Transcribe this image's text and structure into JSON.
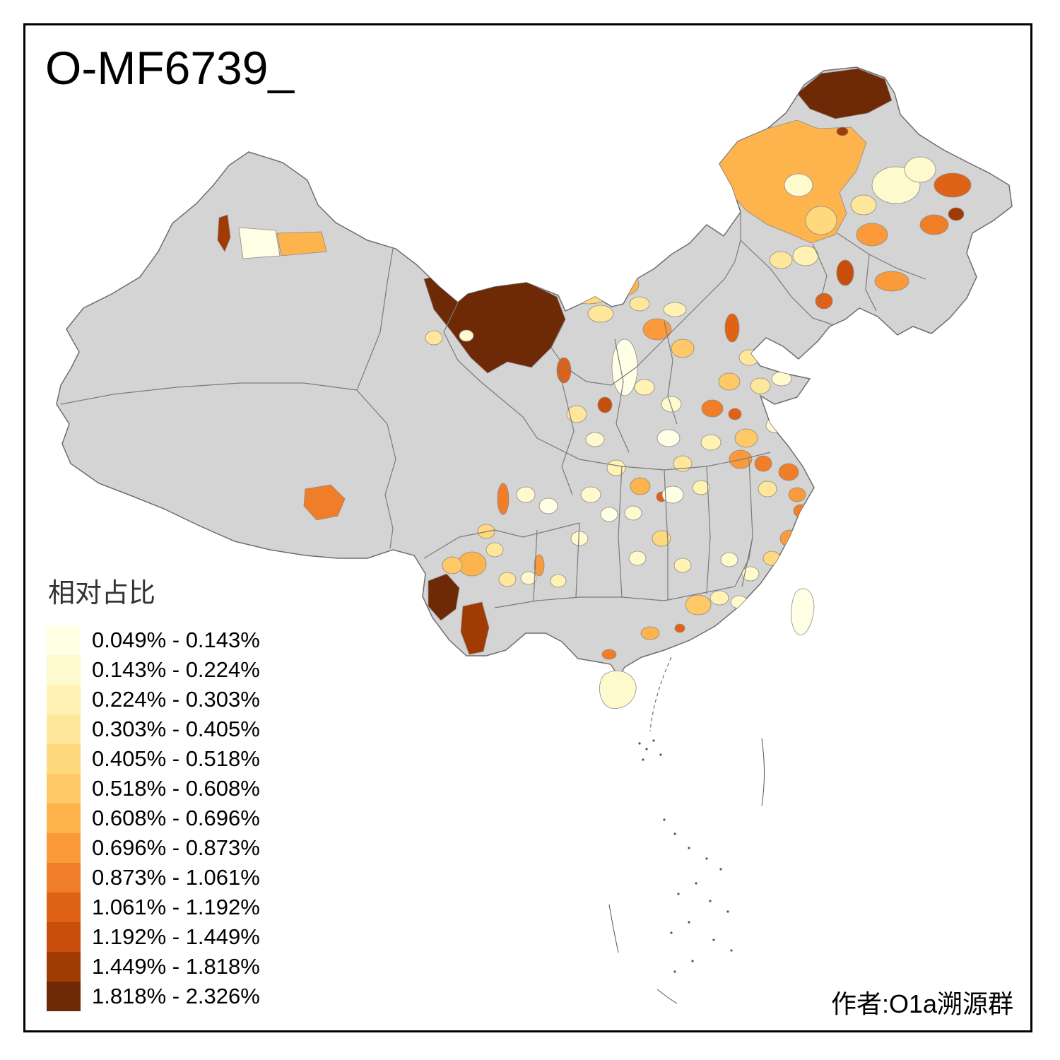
{
  "title": "O-MF6739_",
  "legend": {
    "title": "相对占比",
    "items": [
      {
        "label": "0.049% - 0.143%",
        "color": "#FFFFE5"
      },
      {
        "label": "0.143% - 0.224%",
        "color": "#FFF9CE"
      },
      {
        "label": "0.224% - 0.303%",
        "color": "#FFF2B3"
      },
      {
        "label": "0.303% - 0.405%",
        "color": "#FEE79A"
      },
      {
        "label": "0.405% - 0.518%",
        "color": "#FED97E"
      },
      {
        "label": "0.518% - 0.608%",
        "color": "#FEC966"
      },
      {
        "label": "0.608% - 0.696%",
        "color": "#FEB44D"
      },
      {
        "label": "0.696% - 0.873%",
        "color": "#FB9A3A"
      },
      {
        "label": "0.873% - 1.061%",
        "color": "#F07E28"
      },
      {
        "label": "1.061% - 1.192%",
        "color": "#E06216"
      },
      {
        "label": "1.192% - 1.449%",
        "color": "#C74E0B"
      },
      {
        "label": "1.449% - 1.818%",
        "color": "#A13B04"
      },
      {
        "label": "1.818% - 2.326%",
        "color": "#6E2A06"
      }
    ]
  },
  "credit": "作者:O1a溯源群",
  "map": {
    "type": "choropleth",
    "no_data_color": "#D4D4D4",
    "island_pale_color": "#FFFDE8",
    "outline_color": "#6E6E6E"
  }
}
